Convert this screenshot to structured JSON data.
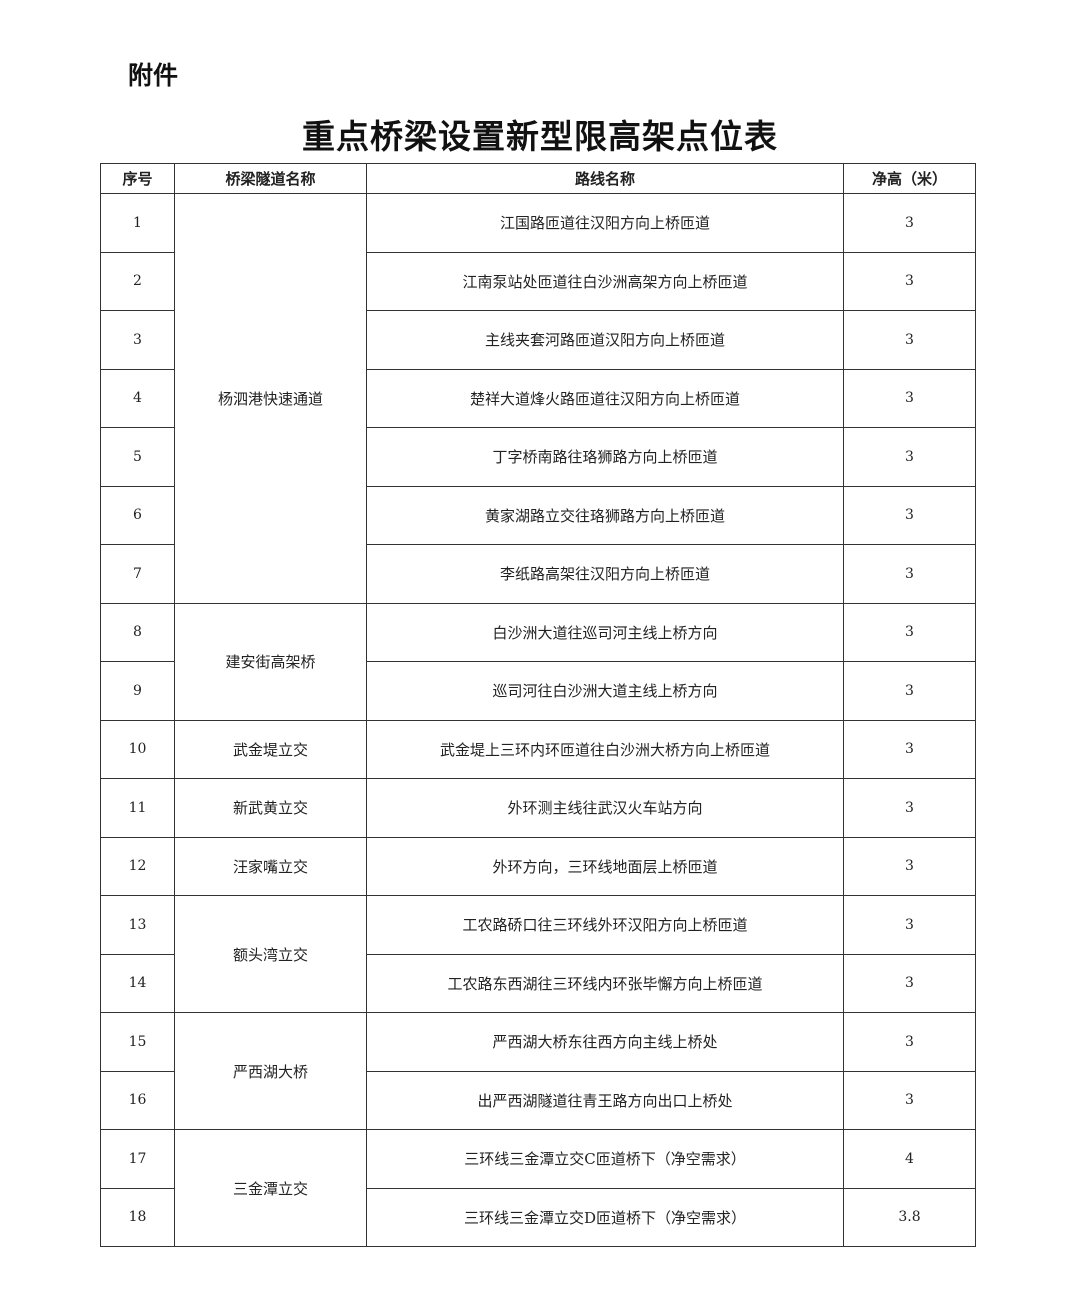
{
  "attachment_label": "附件",
  "title": "重点桥梁设置新型限高架点位表",
  "headers": [
    "序号",
    "桥梁隧道名称",
    "路线名称",
    "净高（米）"
  ],
  "groups": [
    {
      "name": "杨泗港快速通道",
      "rows": [
        {
          "no": "1",
          "route": "江国路匝道往汉阳方向上桥匝道",
          "height": "3"
        },
        {
          "no": "2",
          "route": "江南泵站处匝道往白沙洲高架方向上桥匝道",
          "height": "3"
        },
        {
          "no": "3",
          "route": "主线夹套河路匝道汉阳方向上桥匝道",
          "height": "3"
        },
        {
          "no": "4",
          "route": "楚祥大道烽火路匝道往汉阳方向上桥匝道",
          "height": "3"
        },
        {
          "no": "5",
          "route": "丁字桥南路往珞狮路方向上桥匝道",
          "height": "3"
        },
        {
          "no": "6",
          "route": "黄家湖路立交往珞狮路方向上桥匝道",
          "height": "3"
        },
        {
          "no": "7",
          "route": "李纸路高架往汉阳方向上桥匝道",
          "height": "3"
        }
      ]
    },
    {
      "name": "建安街高架桥",
      "rows": [
        {
          "no": "8",
          "route": "白沙洲大道往巡司河主线上桥方向",
          "height": "3"
        },
        {
          "no": "9",
          "route": "巡司河往白沙洲大道主线上桥方向",
          "height": "3"
        }
      ]
    },
    {
      "name": "武金堤立交",
      "rows": [
        {
          "no": "10",
          "route": "武金堤上三环内环匝道往白沙洲大桥方向上桥匝道",
          "height": "3"
        }
      ]
    },
    {
      "name": "新武黄立交",
      "rows": [
        {
          "no": "11",
          "route": "外环测主线往武汉火车站方向",
          "height": "3"
        }
      ]
    },
    {
      "name": "汪家嘴立交",
      "rows": [
        {
          "no": "12",
          "route": "外环方向，三环线地面层上桥匝道",
          "height": "3"
        }
      ]
    },
    {
      "name": "额头湾立交",
      "rows": [
        {
          "no": "13",
          "route": "工农路硚口往三环线外环汉阳方向上桥匝道",
          "height": "3"
        },
        {
          "no": "14",
          "route": "工农路东西湖往三环线内环张毕懈方向上桥匝道",
          "height": "3"
        }
      ]
    },
    {
      "name": "严西湖大桥",
      "rows": [
        {
          "no": "15",
          "route": "严西湖大桥东往西方向主线上桥处",
          "height": "3"
        },
        {
          "no": "16",
          "route": "出严西湖隧道往青王路方向出口上桥处",
          "height": "3"
        }
      ]
    },
    {
      "name": "三金潭立交",
      "rows": [
        {
          "no": "17",
          "route": "三环线三金潭立交C匝道桥下（净空需求）",
          "height": "4"
        },
        {
          "no": "18",
          "route": "三环线三金潭立交D匝道桥下（净空需求）",
          "height": "3.8"
        }
      ]
    }
  ]
}
